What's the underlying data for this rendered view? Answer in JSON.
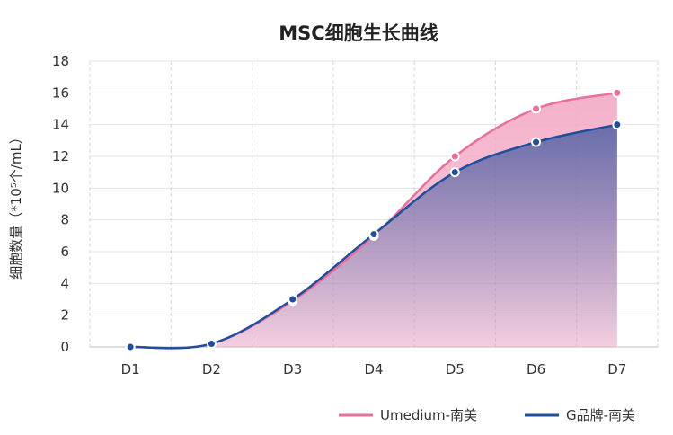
{
  "chart_data": {
    "type": "area",
    "title": "MSC细胞生长曲线",
    "xlabel": "",
    "ylabel": "细胞数量（*10⁵个/mL）",
    "categories": [
      "D1",
      "D2",
      "D3",
      "D4",
      "D5",
      "D6",
      "D7"
    ],
    "ylim": [
      0,
      18
    ],
    "yticks": [
      0,
      2,
      4,
      6,
      8,
      10,
      12,
      14,
      16,
      18
    ],
    "grid": {
      "horizontal": true,
      "vertical_dashed": true
    },
    "legend_position": "bottom-right",
    "series": [
      {
        "name": "Umedium-南美",
        "values": [
          0,
          0.2,
          2.9,
          7.0,
          12.0,
          15.0,
          16.0
        ],
        "color": "#e8709e",
        "fill": "#f6bfd3"
      },
      {
        "name": "G品牌-南美",
        "values": [
          0,
          0.2,
          3.0,
          7.1,
          11.0,
          12.9,
          14.0
        ],
        "color": "#1f4e9b",
        "fill": "#3a5aa4"
      }
    ]
  }
}
